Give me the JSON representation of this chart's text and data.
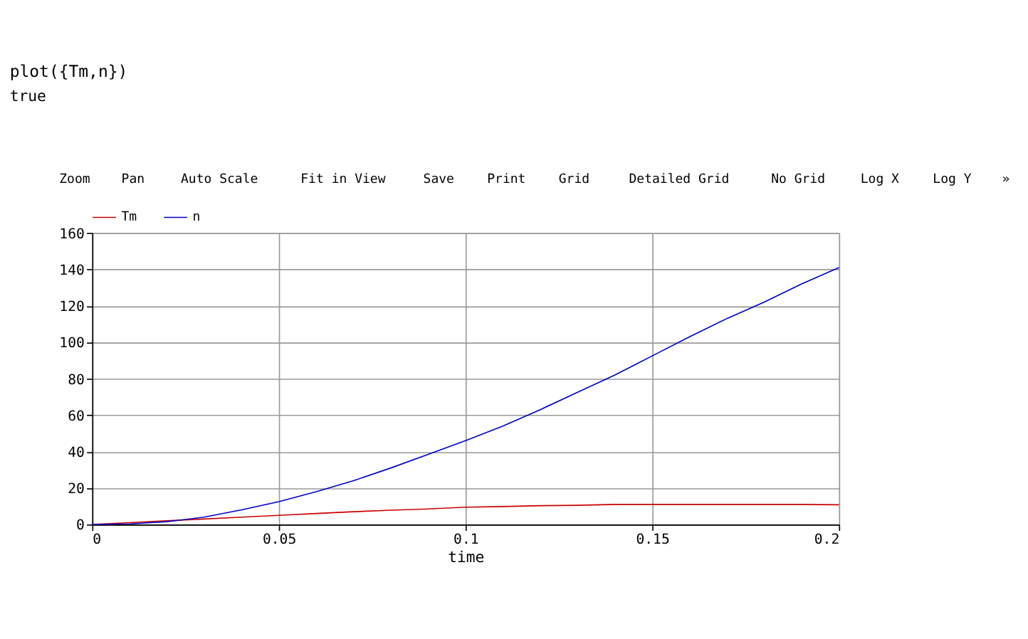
{
  "chart_data": {
    "type": "line",
    "title": "plot({Tm,n})",
    "subtitle": "true",
    "xlabel": "time",
    "annotations": [
      "Zoom",
      "Pan",
      "Auto Scale",
      "Fit in View",
      "Save",
      "Print",
      "Grid",
      "Detailed Grid",
      "No Grid",
      "Log X",
      "Log Y",
      "»"
    ],
    "x": [
      0,
      0.01,
      0.02,
      0.03,
      0.04,
      0.05,
      0.06,
      0.07,
      0.08,
      0.09,
      0.1,
      0.11,
      0.12,
      0.13,
      0.14,
      0.15,
      0.16,
      0.17,
      0.18,
      0.19,
      0.2
    ],
    "series": [
      {
        "name": "Tm",
        "color": "#cc0000",
        "values": [
          0,
          1,
          2,
          3,
          4,
          5,
          6,
          7,
          7.8,
          8.5,
          9.5,
          9.8,
          10.3,
          10.5,
          11,
          11,
          11,
          11,
          11,
          11,
          10.8
        ]
      },
      {
        "name": "n",
        "color": "#0000cc",
        "values": [
          0,
          0.3,
          1.5,
          4,
          8,
          12.5,
          18,
          24,
          31,
          38.5,
          46,
          54,
          63,
          72.5,
          82,
          92.5,
          103,
          113,
          122,
          132,
          141
        ]
      }
    ],
    "xlim": [
      0,
      0.2
    ],
    "xticks": [
      0,
      0.05,
      0.1,
      0.15,
      0.2
    ],
    "ylim": [
      0,
      160
    ],
    "yticks": [
      0,
      20,
      40,
      60,
      80,
      100,
      120,
      140,
      160
    ],
    "grid": true,
    "legend": "top left",
    "line_style": "solid",
    "marker": "none"
  }
}
